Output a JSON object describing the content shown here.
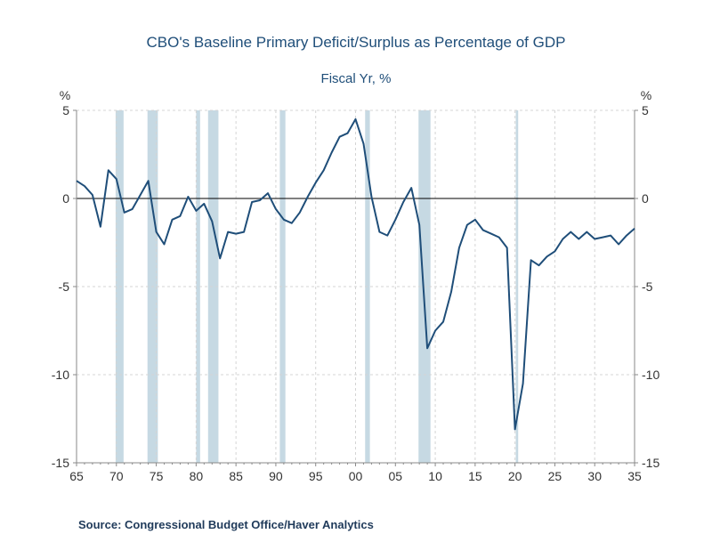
{
  "chart_data": {
    "type": "line",
    "title": "CBO's Baseline Primary Deficit/Surplus as Percentage of GDP",
    "subtitle": "Fiscal Yr, %",
    "y_unit_left": "%",
    "y_unit_right": "%",
    "xlim": [
      1965,
      2035
    ],
    "ylim": [
      -15,
      5
    ],
    "x_ticks": [
      1965,
      1970,
      1975,
      1980,
      1985,
      1990,
      1995,
      2000,
      2005,
      2010,
      2015,
      2020,
      2025,
      2030,
      2035
    ],
    "x_tick_labels": [
      "65",
      "70",
      "75",
      "80",
      "85",
      "90",
      "95",
      "00",
      "05",
      "10",
      "15",
      "20",
      "25",
      "30",
      "35"
    ],
    "y_ticks": [
      5,
      0,
      -5,
      -10,
      -15
    ],
    "y_tick_labels": [
      "5",
      "0",
      "-5",
      "-10",
      "-15"
    ],
    "grid": true,
    "recession_bands": [
      [
        1969.9,
        1970.9
      ],
      [
        1973.9,
        1975.2
      ],
      [
        1980.0,
        1980.5
      ],
      [
        1981.5,
        1982.8
      ],
      [
        1990.5,
        1991.2
      ],
      [
        2001.2,
        2001.8
      ],
      [
        2007.9,
        2009.4
      ],
      [
        2020.1,
        2020.4
      ]
    ],
    "recession_color": "#c6d9e3",
    "series": [
      {
        "color": "#1f4e79",
        "x": [
          1965,
          1966,
          1967,
          1968,
          1969,
          1970,
          1971,
          1972,
          1973,
          1974,
          1975,
          1976,
          1977,
          1978,
          1979,
          1980,
          1981,
          1982,
          1983,
          1984,
          1985,
          1986,
          1987,
          1988,
          1989,
          1990,
          1991,
          1992,
          1993,
          1994,
          1995,
          1996,
          1997,
          1998,
          1999,
          2000,
          2001,
          2002,
          2003,
          2004,
          2005,
          2006,
          2007,
          2008,
          2009,
          2010,
          2011,
          2012,
          2013,
          2014,
          2015,
          2016,
          2017,
          2018,
          2019,
          2020,
          2021,
          2022,
          2023,
          2024,
          2025,
          2026,
          2027,
          2028,
          2029,
          2030,
          2031,
          2032,
          2033,
          2034,
          2035
        ],
        "values": [
          1.0,
          0.7,
          0.2,
          -1.6,
          1.6,
          1.1,
          -0.8,
          -0.6,
          0.2,
          1.0,
          -1.9,
          -2.6,
          -1.2,
          -1.0,
          0.1,
          -0.7,
          -0.3,
          -1.3,
          -3.4,
          -1.9,
          -2.0,
          -1.9,
          -0.2,
          -0.1,
          0.3,
          -0.6,
          -1.2,
          -1.4,
          -0.8,
          0.1,
          0.9,
          1.6,
          2.6,
          3.5,
          3.7,
          4.5,
          3.1,
          0.1,
          -1.9,
          -2.1,
          -1.2,
          -0.2,
          0.6,
          -1.5,
          -8.5,
          -7.5,
          -7.0,
          -5.3,
          -2.8,
          -1.5,
          -1.2,
          -1.8,
          -2.0,
          -2.2,
          -2.8,
          -13.1,
          -10.5,
          -3.5,
          -3.8,
          -3.3,
          -3.0,
          -2.3,
          -1.9,
          -2.3,
          -1.9,
          -2.3,
          -2.2,
          -2.1,
          -2.6,
          -2.1,
          -1.7
        ]
      }
    ]
  },
  "source": "Source:  Congressional Budget Office/Haver Analytics"
}
